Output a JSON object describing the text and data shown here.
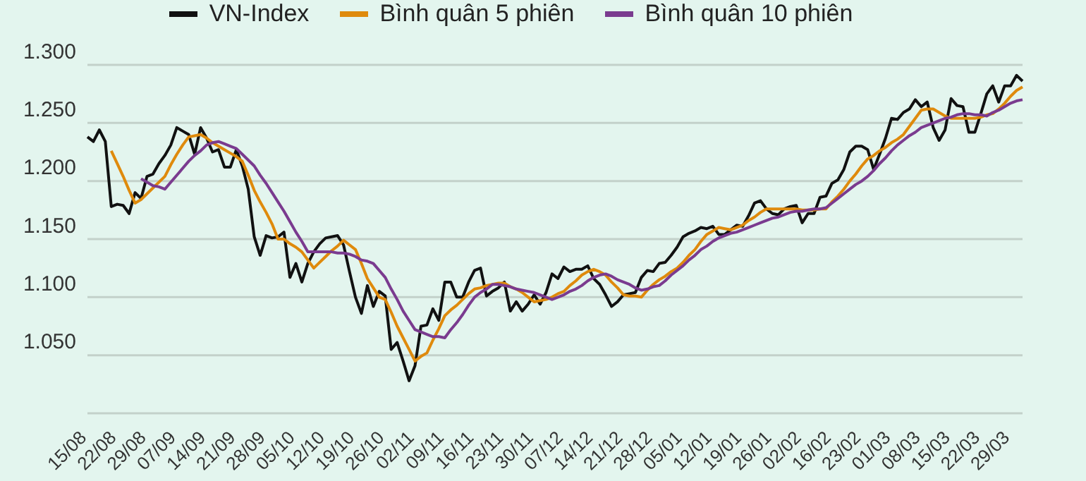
{
  "chart_data": {
    "type": "line",
    "legend": "top",
    "grid": "y",
    "marker": "none",
    "line_style": "solid",
    "categories": [
      "15/08",
      null,
      null,
      null,
      null,
      "22/08",
      null,
      null,
      null,
      null,
      "29/08",
      null,
      null,
      null,
      null,
      "07/09",
      null,
      null,
      null,
      null,
      "14/09",
      null,
      null,
      null,
      null,
      "21/09",
      null,
      null,
      null,
      null,
      "28/09",
      null,
      null,
      null,
      null,
      "05/10",
      null,
      null,
      null,
      null,
      "12/10",
      null,
      null,
      null,
      null,
      "19/10",
      null,
      null,
      null,
      null,
      "26/10",
      null,
      null,
      null,
      null,
      "02/11",
      null,
      null,
      null,
      null,
      "09/11",
      null,
      null,
      null,
      null,
      "16/11",
      null,
      null,
      null,
      null,
      "23/11",
      null,
      null,
      null,
      null,
      "30/11",
      null,
      null,
      null,
      null,
      "07/12",
      null,
      null,
      null,
      null,
      "14/12",
      null,
      null,
      null,
      null,
      "21/12",
      null,
      null,
      null,
      null,
      "28/12",
      null,
      null,
      null,
      null,
      "05/01",
      null,
      null,
      null,
      null,
      "12/01",
      null,
      null,
      null,
      null,
      "19/01",
      null,
      null,
      null,
      null,
      "26/01",
      null,
      null,
      null,
      null,
      "02/02",
      null,
      null,
      null,
      null,
      "16/02",
      null,
      null,
      null,
      null,
      "23/02",
      null,
      null,
      null,
      null,
      "01/03",
      null,
      null,
      null,
      null,
      "08/03",
      null,
      null,
      null,
      null,
      "15/03",
      null,
      null,
      null,
      null,
      "22/03",
      null,
      null,
      null,
      null,
      "29/03",
      null,
      null
    ],
    "ylim": [
      1000,
      1300
    ],
    "yticks": [
      {
        "value": 1050,
        "label": "1.050"
      },
      {
        "value": 1100,
        "label": "1.100"
      },
      {
        "value": 1150,
        "label": "1.150"
      },
      {
        "value": 1200,
        "label": "1.200"
      },
      {
        "value": 1250,
        "label": "1.250"
      },
      {
        "value": 1300,
        "label": "1.300"
      }
    ],
    "series": [
      {
        "name": "VN-Index",
        "color": "#111111",
        "values": [
          1238,
          1234,
          1244,
          1234,
          1178,
          1180,
          1179,
          1172,
          1190,
          1185,
          1204,
          1206,
          1215,
          1222,
          1231,
          1246,
          1243,
          1240,
          1223,
          1246,
          1237,
          1225,
          1227,
          1212,
          1212,
          1227,
          1213,
          1193,
          1152,
          1136,
          1153,
          1151,
          1152,
          1156,
          1117,
          1129,
          1113,
          1129,
          1139,
          1146,
          1151,
          1152,
          1153,
          1145,
          1122,
          1100,
          1086,
          1110,
          1092,
          1105,
          1101,
          1055,
          1061,
          1045,
          1028,
          1041,
          1075,
          1076,
          1090,
          1080,
          1113,
          1113,
          1100,
          1100,
          1113,
          1123,
          1125,
          1101,
          1105,
          1108,
          1113,
          1088,
          1096,
          1088,
          1094,
          1102,
          1094,
          1104,
          1120,
          1116,
          1126,
          1122,
          1124,
          1124,
          1127,
          1116,
          1111,
          1102,
          1092,
          1096,
          1102,
          1103,
          1104,
          1117,
          1123,
          1122,
          1129,
          1130,
          1136,
          1143,
          1152,
          1155,
          1157,
          1160,
          1159,
          1161,
          1154,
          1154,
          1158,
          1162,
          1161,
          1170,
          1181,
          1183,
          1176,
          1172,
          1171,
          1176,
          1178,
          1179,
          1164,
          1172,
          1172,
          1186,
          1187,
          1198,
          1201,
          1210,
          1225,
          1230,
          1230,
          1227,
          1210,
          1223,
          1237,
          1254,
          1253,
          1259,
          1262,
          1270,
          1264,
          1268,
          1246,
          1235,
          1244,
          1271,
          1265,
          1264,
          1242,
          1242,
          1258,
          1275,
          1282,
          1268,
          1282,
          1282,
          1291,
          1286
        ]
      },
      {
        "name": "Bình quân 5 phiên",
        "color": "#df8a0c",
        "values": [
          null,
          null,
          null,
          null,
          1226,
          1215,
          1204,
          1192,
          1181,
          1184,
          1189,
          1194,
          1199,
          1204,
          1214,
          1223,
          1231,
          1238,
          1239,
          1240,
          1237,
          1233,
          1230,
          1227,
          1224,
          1221,
          1217,
          1205,
          1192,
          1182,
          1173,
          1163,
          1150,
          1150,
          1146,
          1143,
          1139,
          1132,
          1125,
          1130,
          1135,
          1140,
          1144,
          1149,
          1145,
          1141,
          1129,
          1116,
          1108,
          1100,
          1098,
          1087,
          1075,
          1065,
          1055,
          1045,
          1049,
          1052,
          1063,
          1073,
          1084,
          1089,
          1093,
          1098,
          1103,
          1107,
          1108,
          1110,
          1111,
          1112,
          1112,
          1109,
          1107,
          1104,
          1100,
          1096,
          1097,
          1098,
          1100,
          1103,
          1105,
          1110,
          1114,
          1119,
          1122,
          1124,
          1122,
          1119,
          1113,
          1108,
          1102,
          1101,
          1101,
          1100,
          1106,
          1111,
          1115,
          1118,
          1122,
          1125,
          1130,
          1136,
          1141,
          1148,
          1154,
          1157,
          1160,
          1159,
          1158,
          1160,
          1162,
          1166,
          1169,
          1173,
          1176,
          1176,
          1176,
          1176,
          1176,
          1176,
          1175,
          1175,
          1175,
          1176,
          1176,
          1182,
          1187,
          1193,
          1200,
          1206,
          1213,
          1219,
          1222,
          1226,
          1229,
          1233,
          1236,
          1240,
          1247,
          1254,
          1261,
          1262,
          1262,
          1259,
          1256,
          1254,
          1254,
          1254,
          1254,
          1254,
          1255,
          1257,
          1258,
          1262,
          1267,
          1273,
          1278,
          1281
        ]
      },
      {
        "name": "Bình quân 10 phiên",
        "color": "#7a3b8f",
        "values": [
          null,
          null,
          null,
          null,
          null,
          null,
          null,
          null,
          null,
          1202,
          1199,
          1196,
          1195,
          1193,
          1199,
          1205,
          1211,
          1217,
          1222,
          1226,
          1231,
          1233,
          1234,
          1232,
          1230,
          1228,
          1223,
          1218,
          1213,
          1205,
          1198,
          1190,
          1182,
          1174,
          1165,
          1156,
          1148,
          1139,
          1139,
          1139,
          1139,
          1139,
          1138,
          1138,
          1137,
          1135,
          1132,
          1131,
          1129,
          1123,
          1117,
          1107,
          1098,
          1088,
          1080,
          1072,
          1070,
          1068,
          1066,
          1066,
          1065,
          1072,
          1078,
          1085,
          1093,
          1100,
          1104,
          1107,
          1111,
          1111,
          1110,
          1109,
          1107,
          1106,
          1105,
          1104,
          1102,
          1100,
          1098,
          1100,
          1102,
          1105,
          1107,
          1110,
          1114,
          1117,
          1119,
          1120,
          1118,
          1115,
          1113,
          1111,
          1108,
          1106,
          1107,
          1109,
          1110,
          1114,
          1119,
          1123,
          1127,
          1132,
          1136,
          1141,
          1144,
          1148,
          1151,
          1153,
          1155,
          1156,
          1158,
          1160,
          1162,
          1164,
          1166,
          1168,
          1169,
          1171,
          1173,
          1174,
          1174,
          1175,
          1176,
          1176,
          1177,
          1181,
          1185,
          1189,
          1193,
          1197,
          1200,
          1204,
          1209,
          1215,
          1220,
          1226,
          1231,
          1235,
          1239,
          1242,
          1246,
          1248,
          1250,
          1252,
          1254,
          1255,
          1257,
          1258,
          1258,
          1257,
          1257,
          1256,
          1259,
          1261,
          1264,
          1267,
          1269,
          1270
        ]
      }
    ]
  }
}
